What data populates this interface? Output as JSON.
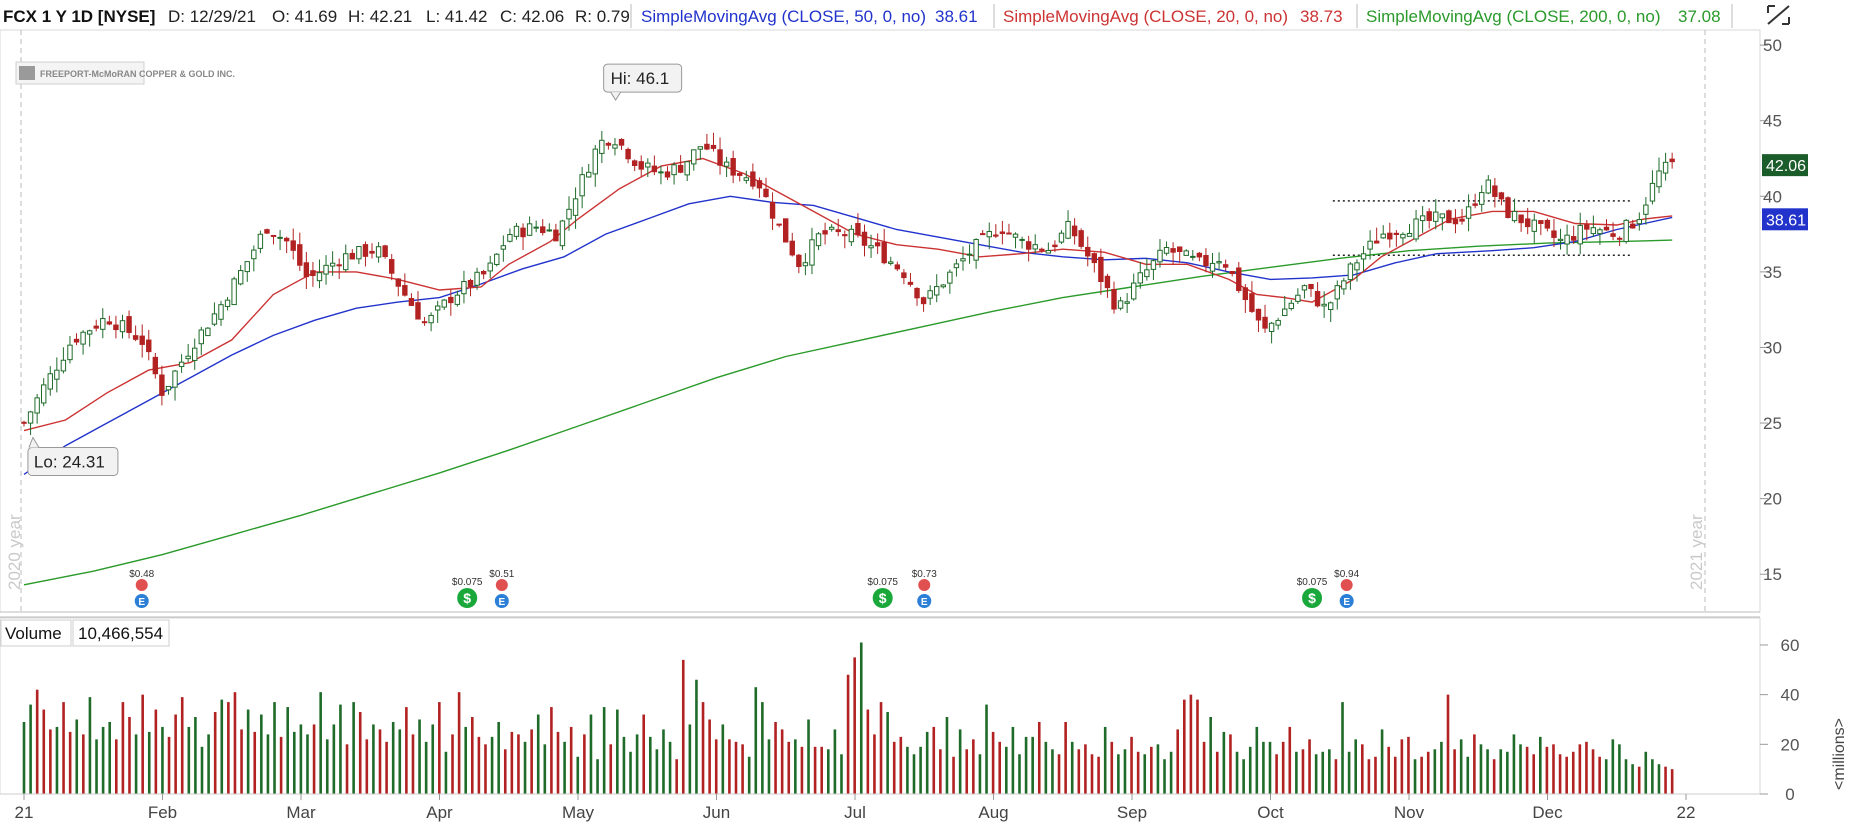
{
  "header": {
    "symbol": "FCX 1 Y 1D [NYSE]",
    "date": "D: 12/29/21",
    "open": "O: 41.69",
    "high": "H: 42.21",
    "low": "L: 41.42",
    "close": "C: 42.06",
    "range": "R: 0.79",
    "sma50_label": "SimpleMovingAvg (CLOSE, 50, 0, no)",
    "sma50_value": "38.61",
    "sma20_label": "SimpleMovingAvg (CLOSE, 20, 0, no)",
    "sma20_value": "38.73",
    "sma200_label": "SimpleMovingAvg (CLOSE, 200, 0, no)",
    "sma200_value": "37.08"
  },
  "logo_text": "FREEPORT-McMoRAN COPPER & GOLD INC.",
  "colors": {
    "up": "#1f6b2a",
    "down": "#b22222",
    "sma50": "#2233cc",
    "sma20": "#cc3333",
    "sma200": "#2a9a2a",
    "price_tag": "#1a5c2a",
    "sma50_tag": "#2233cc"
  },
  "price_tags": {
    "last": "42.06",
    "sma50": "38.61"
  },
  "annotations": {
    "hi": "Hi: 46.1",
    "lo": "Lo: 24.31"
  },
  "period_labels": {
    "left": "2020 year",
    "right": "2021 year"
  },
  "volume_panel": {
    "label": "Volume",
    "value": "10,466,554",
    "unit": "<millions>"
  },
  "events": [
    {
      "kind": "dividend",
      "label": "$0.075",
      "month": 3.2
    },
    {
      "kind": "dividend",
      "label": "$0.075",
      "month": 6.2
    },
    {
      "kind": "dividend",
      "label": "$0.075",
      "month": 9.3
    },
    {
      "kind": "earnings",
      "label": "$0.48",
      "month": 0.85
    },
    {
      "kind": "earnings",
      "label": "$0.51",
      "month": 3.45
    },
    {
      "kind": "earnings",
      "label": "$0.73",
      "month": 6.5
    },
    {
      "kind": "earnings",
      "label": "$0.94",
      "month": 9.55
    }
  ],
  "chart_data": [
    {
      "type": "candlestick",
      "x_axis": {
        "labels": [
          "21",
          "Feb",
          "Mar",
          "Apr",
          "May",
          "Jun",
          "Jul",
          "Aug",
          "Sep",
          "Oct",
          "Nov",
          "Dec",
          "22"
        ]
      },
      "y_axis": {
        "ticks": [
          15,
          20,
          25,
          30,
          35,
          40,
          45,
          50
        ],
        "range": [
          12.5,
          51
        ]
      },
      "price_path_month_value": [
        [
          0.0,
          25.0
        ],
        [
          0.15,
          27.5
        ],
        [
          0.35,
          30.5
        ],
        [
          0.6,
          32.0
        ],
        [
          0.85,
          30.5
        ],
        [
          1.0,
          27.0
        ],
        [
          1.2,
          30.0
        ],
        [
          1.4,
          32.5
        ],
        [
          1.6,
          35.5
        ],
        [
          1.75,
          38.0
        ],
        [
          1.9,
          37.0
        ],
        [
          2.05,
          34.5
        ],
        [
          2.3,
          36.0
        ],
        [
          2.55,
          36.5
        ],
        [
          2.75,
          33.5
        ],
        [
          2.9,
          31.5
        ],
        [
          3.1,
          33.5
        ],
        [
          3.35,
          35.0
        ],
        [
          3.5,
          37.5
        ],
        [
          3.7,
          38.0
        ],
        [
          3.85,
          37.5
        ],
        [
          4.0,
          40.5
        ],
        [
          4.15,
          43.5
        ],
        [
          4.25,
          44.0
        ],
        [
          4.45,
          42.0
        ],
        [
          4.6,
          41.5
        ],
        [
          4.75,
          42.0
        ],
        [
          4.9,
          43.5
        ],
        [
          5.05,
          42.0
        ],
        [
          5.3,
          41.0
        ],
        [
          5.45,
          38.0
        ],
        [
          5.6,
          35.5
        ],
        [
          5.75,
          37.5
        ],
        [
          5.95,
          37.5
        ],
        [
          6.15,
          36.5
        ],
        [
          6.35,
          35.0
        ],
        [
          6.5,
          33.0
        ],
        [
          6.7,
          35.0
        ],
        [
          6.85,
          36.5
        ],
        [
          7.05,
          38.0
        ],
        [
          7.2,
          37.0
        ],
        [
          7.4,
          36.5
        ],
        [
          7.55,
          38.0
        ],
        [
          7.75,
          35.0
        ],
        [
          7.9,
          32.5
        ],
        [
          8.05,
          34.5
        ],
        [
          8.25,
          36.5
        ],
        [
          8.5,
          35.5
        ],
        [
          8.65,
          36.0
        ],
        [
          8.8,
          33.5
        ],
        [
          8.95,
          31.0
        ],
        [
          9.1,
          32.5
        ],
        [
          9.25,
          34.0
        ],
        [
          9.4,
          32.5
        ],
        [
          9.6,
          35.5
        ],
        [
          9.8,
          37.5
        ],
        [
          10.0,
          38.0
        ],
        [
          10.2,
          38.5
        ],
        [
          10.4,
          38.5
        ],
        [
          10.55,
          41.0
        ],
        [
          10.7,
          39.0
        ],
        [
          10.9,
          38.0
        ],
        [
          11.1,
          37.0
        ],
        [
          11.3,
          38.0
        ],
        [
          11.5,
          37.5
        ],
        [
          11.65,
          38.5
        ],
        [
          11.8,
          41.5
        ],
        [
          11.9,
          42.1
        ]
      ],
      "sma20_path_month_value": [
        [
          0.0,
          24.5
        ],
        [
          0.3,
          25.2
        ],
        [
          0.6,
          27.0
        ],
        [
          0.9,
          28.5
        ],
        [
          1.2,
          29.0
        ],
        [
          1.5,
          30.5
        ],
        [
          1.8,
          33.5
        ],
        [
          2.1,
          35.0
        ],
        [
          2.4,
          35.0
        ],
        [
          2.7,
          34.5
        ],
        [
          3.0,
          33.8
        ],
        [
          3.3,
          34.0
        ],
        [
          3.5,
          35.5
        ],
        [
          3.8,
          37.0
        ],
        [
          4.0,
          38.5
        ],
        [
          4.3,
          40.5
        ],
        [
          4.6,
          42.0
        ],
        [
          4.9,
          42.5
        ],
        [
          5.2,
          41.5
        ],
        [
          5.4,
          40.5
        ],
        [
          5.7,
          39.0
        ],
        [
          6.0,
          37.5
        ],
        [
          6.3,
          36.8
        ],
        [
          6.6,
          36.5
        ],
        [
          6.9,
          36.0
        ],
        [
          7.2,
          36.2
        ],
        [
          7.5,
          36.5
        ],
        [
          7.8,
          36.3
        ],
        [
          8.1,
          35.5
        ],
        [
          8.4,
          35.5
        ],
        [
          8.7,
          34.5
        ],
        [
          8.9,
          33.5
        ],
        [
          9.1,
          33.3
        ],
        [
          9.3,
          33.0
        ],
        [
          9.6,
          34.5
        ],
        [
          9.8,
          36.0
        ],
        [
          10.1,
          37.5
        ],
        [
          10.3,
          38.5
        ],
        [
          10.6,
          39.0
        ],
        [
          10.9,
          39.0
        ],
        [
          11.2,
          38.2
        ],
        [
          11.5,
          38.1
        ],
        [
          11.7,
          38.5
        ],
        [
          11.9,
          38.7
        ]
      ],
      "sma50_path_month_value": [
        [
          0.0,
          21.6
        ],
        [
          0.3,
          23.5
        ],
        [
          0.6,
          25.0
        ],
        [
          0.9,
          26.5
        ],
        [
          1.2,
          28.0
        ],
        [
          1.5,
          29.5
        ],
        [
          1.8,
          30.8
        ],
        [
          2.1,
          31.8
        ],
        [
          2.4,
          32.6
        ],
        [
          2.7,
          33.0
        ],
        [
          3.0,
          33.3
        ],
        [
          3.3,
          34.2
        ],
        [
          3.6,
          35.2
        ],
        [
          3.9,
          36.0
        ],
        [
          4.2,
          37.5
        ],
        [
          4.5,
          38.5
        ],
        [
          4.8,
          39.5
        ],
        [
          5.1,
          40.0
        ],
        [
          5.4,
          39.6
        ],
        [
          5.7,
          39.4
        ],
        [
          6.0,
          38.6
        ],
        [
          6.3,
          37.8
        ],
        [
          6.6,
          37.3
        ],
        [
          6.9,
          36.8
        ],
        [
          7.2,
          36.3
        ],
        [
          7.5,
          36.0
        ],
        [
          7.8,
          35.8
        ],
        [
          8.1,
          35.9
        ],
        [
          8.4,
          35.6
        ],
        [
          8.7,
          35.0
        ],
        [
          9.0,
          34.5
        ],
        [
          9.3,
          34.6
        ],
        [
          9.6,
          34.8
        ],
        [
          9.9,
          35.6
        ],
        [
          10.2,
          36.2
        ],
        [
          10.6,
          36.4
        ],
        [
          10.9,
          36.6
        ],
        [
          11.2,
          37.0
        ],
        [
          11.5,
          37.8
        ],
        [
          11.7,
          38.2
        ],
        [
          11.9,
          38.6
        ]
      ],
      "sma200_path_month_value": [
        [
          0.0,
          14.3
        ],
        [
          0.5,
          15.2
        ],
        [
          1.0,
          16.3
        ],
        [
          1.5,
          17.6
        ],
        [
          2.0,
          18.9
        ],
        [
          2.5,
          20.3
        ],
        [
          3.0,
          21.7
        ],
        [
          3.5,
          23.2
        ],
        [
          4.0,
          24.8
        ],
        [
          4.5,
          26.4
        ],
        [
          5.0,
          28.0
        ],
        [
          5.5,
          29.4
        ],
        [
          6.0,
          30.4
        ],
        [
          6.5,
          31.4
        ],
        [
          7.0,
          32.4
        ],
        [
          7.5,
          33.3
        ],
        [
          8.0,
          34.0
        ],
        [
          8.5,
          34.7
        ],
        [
          9.0,
          35.3
        ],
        [
          9.5,
          35.9
        ],
        [
          10.0,
          36.4
        ],
        [
          10.5,
          36.7
        ],
        [
          11.0,
          36.9
        ],
        [
          11.5,
          37.0
        ],
        [
          11.9,
          37.1
        ]
      ],
      "resistance_level": {
        "value": 39.7,
        "from_month": 9.45,
        "to_month": 11.6
      },
      "support_level": {
        "value": 36.1,
        "from_month": 9.45,
        "to_month": 11.6
      },
      "high": {
        "value": 46.1,
        "month": 4.25
      },
      "low": {
        "value": 24.31,
        "month": 0.05
      }
    },
    {
      "type": "bar",
      "title": "Volume",
      "y_axis": {
        "ticks": [
          0,
          20,
          40,
          60
        ],
        "unit": "<millions>"
      },
      "values_millions": [
        29,
        36,
        42,
        34,
        26,
        27,
        37,
        25,
        30,
        24,
        39,
        22,
        27,
        29,
        22,
        37,
        31,
        24,
        40,
        25,
        34,
        27,
        23,
        32,
        39,
        27,
        31,
        19,
        24,
        33,
        38,
        37,
        41,
        26,
        34,
        25,
        32,
        24,
        37,
        23,
        35,
        25,
        28,
        24,
        28,
        41,
        22,
        28,
        36,
        20,
        37,
        33,
        22,
        28,
        26,
        21,
        29,
        26,
        35,
        24,
        30,
        21,
        28,
        37,
        17,
        24,
        41,
        27,
        31,
        23,
        20,
        23,
        29,
        18,
        25,
        24,
        21,
        26,
        32,
        20,
        35,
        25,
        21,
        27,
        15,
        24,
        32,
        14,
        35,
        20,
        34,
        23,
        17,
        24,
        32,
        23,
        18,
        26,
        21,
        14,
        54,
        28,
        46,
        37,
        30,
        22,
        28,
        22,
        21,
        20,
        15,
        43,
        37,
        22,
        29,
        26,
        21,
        22,
        19,
        30,
        19,
        19,
        18,
        26,
        16,
        48,
        55,
        61,
        34,
        24,
        37,
        33,
        21,
        23,
        19,
        16,
        19,
        25,
        27,
        18,
        31,
        15,
        26,
        18,
        22,
        16,
        36,
        25,
        21,
        19,
        27,
        16,
        23,
        23,
        29,
        21,
        18,
        16,
        29,
        21,
        18,
        20,
        16,
        15,
        27,
        21,
        16,
        18,
        23,
        17,
        16,
        19,
        20,
        14,
        17,
        26,
        38,
        40,
        38,
        21,
        31,
        17,
        25,
        24,
        17,
        14,
        19,
        27,
        21,
        21,
        16,
        21,
        27,
        17,
        18,
        22,
        16,
        17,
        18,
        14,
        37,
        17,
        22,
        20,
        14,
        15,
        26,
        19,
        15,
        22,
        23,
        14,
        15,
        17,
        18,
        21,
        40,
        18,
        22,
        15,
        24,
        20,
        18,
        14,
        18,
        17,
        24,
        20,
        19,
        16,
        23,
        19,
        20,
        16,
        15,
        17,
        20,
        21,
        18,
        15,
        14,
        22,
        20,
        14,
        12,
        11,
        17,
        14,
        12,
        11,
        10
      ]
    }
  ]
}
